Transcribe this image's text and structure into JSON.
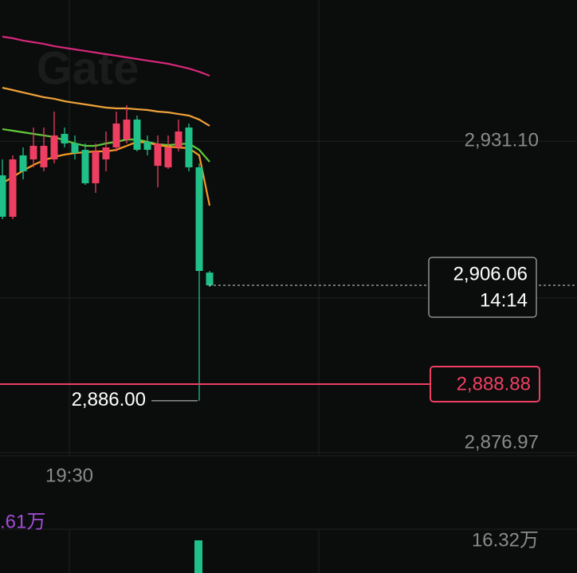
{
  "chart_data": {
    "type": "candlestick",
    "watermark": "Gate",
    "ylim": [
      2876.42,
      2955.64
    ],
    "yticks": [
      {
        "value": 2931.1,
        "label": "2,931.10"
      },
      {
        "value": 2876.97,
        "label": "2,876.97"
      }
    ],
    "up_color": "#ee3f62",
    "down_color": "#20c089",
    "open": [
      2925.17,
      2917.97,
      2928.64,
      2927.94,
      2926.56,
      2927.94,
      2932.37,
      2930.71,
      2929.6,
      2923.79,
      2927.94,
      2930.02,
      2931.4,
      2934.86,
      2930.99,
      2926.83,
      2926.56,
      2930.02,
      2933.48,
      2926.56,
      2908.27
    ],
    "high": [
      2927.94,
      2928.64,
      2930.02,
      2933.48,
      2933.48,
      2936.25,
      2933.48,
      2932.1,
      2930.71,
      2930.71,
      2932.79,
      2936.25,
      2937.36,
      2935.56,
      2932.1,
      2932.1,
      2932.1,
      2934.86,
      2934.17,
      2927.25,
      2908.55
    ],
    "low": [
      2917.55,
      2917.55,
      2924.48,
      2926.56,
      2925.86,
      2927.25,
      2930.02,
      2927.94,
      2923.51,
      2922.12,
      2925.86,
      2929.33,
      2930.71,
      2929.33,
      2928.64,
      2923.09,
      2926.28,
      2929.33,
      2925.86,
      2886.0,
      2905.78
    ],
    "close": [
      2917.97,
      2927.94,
      2925.86,
      2930.3,
      2930.3,
      2932.1,
      2930.71,
      2929.05,
      2923.79,
      2929.33,
      2930.02,
      2934.17,
      2934.86,
      2929.6,
      2929.6,
      2930.71,
      2930.02,
      2932.79,
      2926.56,
      2908.55,
      2906.06
    ],
    "series": [
      {
        "color": "#d6287a",
        "values": [
          2949.27,
          2948.99,
          2948.58,
          2948.3,
          2948.02,
          2947.61,
          2947.33,
          2947.05,
          2946.78,
          2946.5,
          2946.22,
          2945.95,
          2945.67,
          2945.39,
          2945.11,
          2944.84,
          2944.56,
          2944.15,
          2943.73,
          2943.17,
          2942.48
        ]
      },
      {
        "color": "#eea23a",
        "values": [
          2940.4,
          2939.99,
          2939.57,
          2939.16,
          2938.74,
          2938.47,
          2938.05,
          2937.77,
          2937.5,
          2937.22,
          2936.94,
          2936.8,
          2936.8,
          2936.66,
          2936.53,
          2936.25,
          2936.11,
          2935.83,
          2935.56,
          2934.86,
          2933.76
        ]
      },
      {
        "color": "#62c93a",
        "values": [
          2933.2,
          2932.93,
          2932.65,
          2932.37,
          2932.1,
          2931.82,
          2931.26,
          2930.71,
          2930.3,
          2930.3,
          2930.71,
          2930.99,
          2931.4,
          2931.4,
          2930.99,
          2930.57,
          2930.43,
          2930.57,
          2930.71,
          2929.6,
          2927.52
        ]
      },
      {
        "color": "#f59a23",
        "values": [
          2923.79,
          2924.89,
          2926.0,
          2926.97,
          2927.8,
          2928.36,
          2928.77,
          2929.05,
          2929.19,
          2929.33,
          2929.33,
          2929.6,
          2930.3,
          2930.99,
          2930.85,
          2930.43,
          2930.16,
          2930.02,
          2929.88,
          2928.64,
          2919.91
        ]
      }
    ],
    "last_price": {
      "value": 2906.06,
      "label": "2,906.06",
      "time": "14:14"
    },
    "price_line": {
      "value": 2888.88,
      "label": "2,888.88",
      "color": "#ee3f62"
    },
    "low_marker": {
      "value": 2886.0,
      "label": "2,886.00"
    },
    "time_label": "19:30",
    "volume_indicator": ".61万",
    "volume_max_label": "16.32万"
  }
}
